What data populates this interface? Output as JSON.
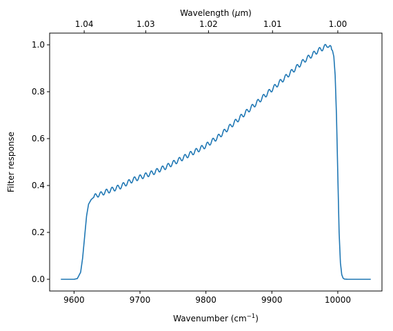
{
  "chart_data": {
    "type": "line",
    "xlabel": "Wavenumber (cm",
    "xlabel_sup": "−1",
    "xlabel_close": ")",
    "ylabel": "Filter response",
    "top_xlabel": "Wavelength (",
    "top_xlabel_italic": "μ",
    "top_xlabel_close": "m)",
    "xlim": [
      9563,
      10067
    ],
    "ylim": [
      -0.05,
      1.05
    ],
    "x_ticks": [
      9600,
      9700,
      9800,
      9900,
      10000
    ],
    "y_ticks": [
      0.0,
      0.2,
      0.4,
      0.6,
      0.8,
      1.0
    ],
    "top_ticks": [
      {
        "label": "1.04",
        "wavenumber": 9615.4
      },
      {
        "label": "1.03",
        "wavenumber": 9708.7
      },
      {
        "label": "1.02",
        "wavenumber": 9803.9
      },
      {
        "label": "1.01",
        "wavenumber": 9901.0
      },
      {
        "label": "1.00",
        "wavenumber": 10000.0
      }
    ],
    "series": [
      {
        "color": "#1f77b4",
        "x": [
          9580,
          9600,
          9605,
          9610,
          9613,
          9616,
          9619,
          9622,
          9626,
          9630,
          9635,
          9640,
          9645,
          9650,
          9660,
          9670,
          9680,
          9690,
          9700,
          9710,
          9720,
          9730,
          9740,
          9750,
          9760,
          9770,
          9780,
          9790,
          9800,
          9810,
          9820,
          9830,
          9840,
          9850,
          9860,
          9870,
          9880,
          9890,
          9900,
          9910,
          9920,
          9930,
          9940,
          9950,
          9960,
          9970,
          9980,
          9985,
          9988,
          9992,
          9994,
          9996,
          9998,
          10000,
          10002,
          10004,
          10006,
          10008,
          10010,
          10015,
          10020,
          10050
        ],
        "y": [
          0.0,
          0.0,
          0.003,
          0.03,
          0.09,
          0.18,
          0.27,
          0.32,
          0.34,
          0.35,
          0.36,
          0.362,
          0.37,
          0.375,
          0.385,
          0.395,
          0.41,
          0.425,
          0.435,
          0.445,
          0.455,
          0.468,
          0.48,
          0.495,
          0.51,
          0.525,
          0.54,
          0.555,
          0.57,
          0.59,
          0.61,
          0.635,
          0.66,
          0.685,
          0.71,
          0.735,
          0.76,
          0.785,
          0.81,
          0.835,
          0.86,
          0.885,
          0.91,
          0.935,
          0.955,
          0.975,
          0.99,
          1.0,
          0.99,
          0.975,
          0.95,
          0.87,
          0.7,
          0.45,
          0.2,
          0.07,
          0.02,
          0.005,
          0.001,
          0.0,
          0.0,
          0.0
        ],
        "ripple_amplitude": 0.01,
        "ripple_period_cm": 8.5,
        "ripple_range": [
          9630,
          9990
        ]
      }
    ]
  }
}
